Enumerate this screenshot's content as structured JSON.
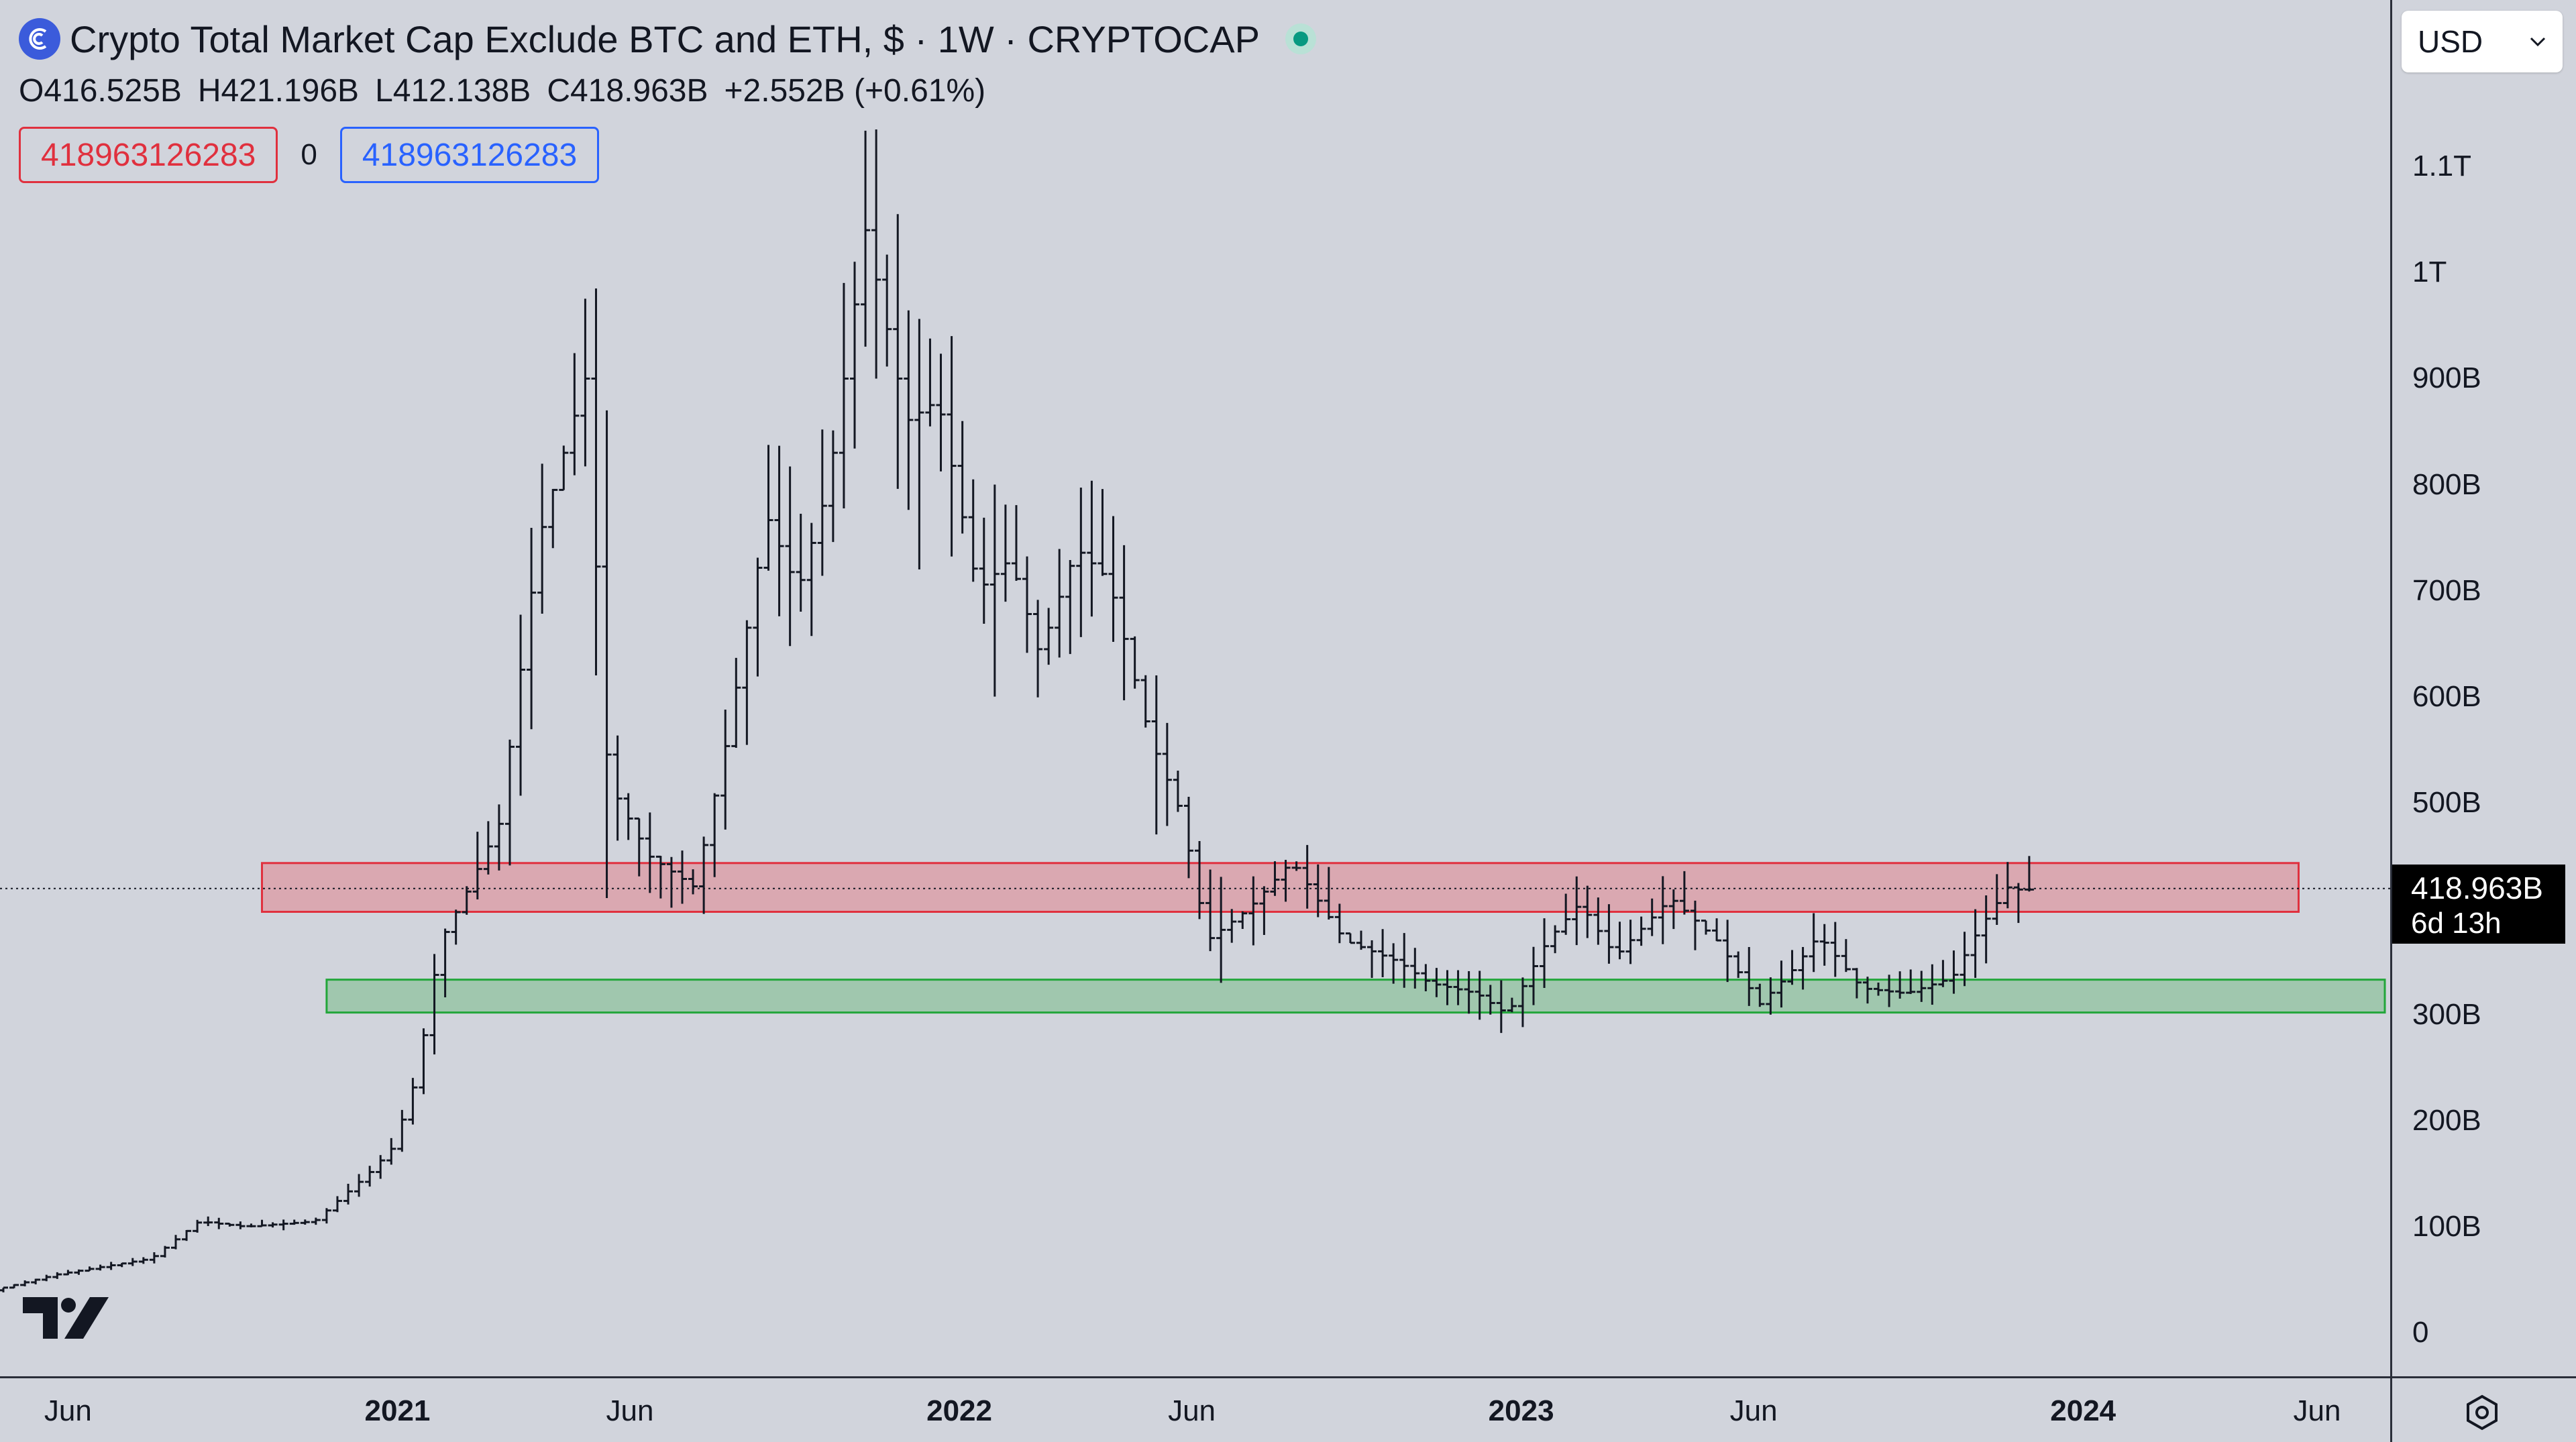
{
  "header": {
    "title": "Crypto Total Market Cap Exclude BTC and ETH, $ · 1W · CRYPTOCAP",
    "ohlc": {
      "open_label": "O",
      "open": "416.525B",
      "high_label": "H",
      "high": "421.196B",
      "low_label": "L",
      "low": "412.138B",
      "close_label": "C",
      "close": "418.963B",
      "change": "+2.552B (+0.61%)"
    },
    "bid_value": "418963126283",
    "spread": "0",
    "ask_value": "418963126283",
    "status": "market-open-dot"
  },
  "currency_select": {
    "value": "USD"
  },
  "last_price": {
    "price": "418.963B",
    "countdown": "6d 13h"
  },
  "colors": {
    "background": "#d1d4dc",
    "bars": "#131722",
    "resistance_zone": "#e0303e",
    "support_zone": "#22a63a",
    "bid": "#e0303e",
    "ask": "#2962ff"
  },
  "icons": {
    "logo": "tradingview-logo",
    "symbol": "cryptocap-icon",
    "settings": "settings-gear-icon"
  },
  "chart_data": {
    "type": "ohlc",
    "interval": "1W",
    "ylim": [
      0,
      1150
    ],
    "y_unit": "B",
    "x_range": [
      "2020-04-20",
      "2024-07-15"
    ],
    "y_ticks": [
      {
        "value": 1100,
        "label": "1.1T"
      },
      {
        "value": 1000,
        "label": "1T"
      },
      {
        "value": 900,
        "label": "900B"
      },
      {
        "value": 800,
        "label": "800B"
      },
      {
        "value": 700,
        "label": "700B"
      },
      {
        "value": 600,
        "label": "600B"
      },
      {
        "value": 500,
        "label": "500B"
      },
      {
        "value": 300,
        "label": "300B"
      },
      {
        "value": 200,
        "label": "200B"
      },
      {
        "value": 100,
        "label": "100B"
      },
      {
        "value": 0,
        "label": "0"
      }
    ],
    "x_ticks": [
      {
        "date": "2020-06-01",
        "label": "Jun",
        "year": false
      },
      {
        "date": "2021-01-01",
        "label": "2021",
        "year": true
      },
      {
        "date": "2021-06-01",
        "label": "Jun",
        "year": false
      },
      {
        "date": "2022-01-01",
        "label": "2022",
        "year": true
      },
      {
        "date": "2022-06-01",
        "label": "Jun",
        "year": false
      },
      {
        "date": "2023-01-01",
        "label": "2023",
        "year": true
      },
      {
        "date": "2023-06-01",
        "label": "Jun",
        "year": false
      },
      {
        "date": "2024-01-01",
        "label": "2024",
        "year": true
      },
      {
        "date": "2024-06-01",
        "label": "Jun",
        "year": false
      }
    ],
    "last_price_line": 418.963,
    "zones": [
      {
        "name": "resistance",
        "from": "2020-10-05",
        "to": "2024-05-20",
        "low": 397,
        "high": 443
      },
      {
        "name": "support",
        "from": "2020-11-16",
        "to": "2024-07-15",
        "low": 302,
        "high": 333
      }
    ],
    "anchors": [
      [
        "2020-04-20",
        40
      ],
      [
        "2020-06-01",
        55
      ],
      [
        "2020-08-01",
        70
      ],
      [
        "2020-09-01",
        105
      ],
      [
        "2020-10-01",
        100
      ],
      [
        "2020-11-15",
        105
      ],
      [
        "2020-12-20",
        150
      ],
      [
        "2021-01-05",
        175
      ],
      [
        "2021-01-20",
        240
      ],
      [
        "2021-02-05",
        370
      ],
      [
        "2021-02-20",
        410
      ],
      [
        "2021-03-15",
        480
      ],
      [
        "2021-04-10",
        750
      ],
      [
        "2021-05-10",
        900
      ],
      [
        "2021-05-25",
        520
      ],
      [
        "2021-06-20",
        450
      ],
      [
        "2021-07-20",
        420
      ],
      [
        "2021-08-10",
        560
      ],
      [
        "2021-09-05",
        770
      ],
      [
        "2021-09-25",
        700
      ],
      [
        "2021-10-15",
        800
      ],
      [
        "2021-11-08",
        1040
      ],
      [
        "2021-12-05",
        860
      ],
      [
        "2021-12-25",
        880
      ],
      [
        "2022-01-20",
        700
      ],
      [
        "2022-02-10",
        730
      ],
      [
        "2022-03-01",
        640
      ],
      [
        "2022-03-25",
        740
      ],
      [
        "2022-04-15",
        710
      ],
      [
        "2022-05-12",
        560
      ],
      [
        "2022-06-01",
        490
      ],
      [
        "2022-06-18",
        370
      ],
      [
        "2022-07-15",
        400
      ],
      [
        "2022-08-12",
        445
      ],
      [
        "2022-09-15",
        370
      ],
      [
        "2022-10-20",
        350
      ],
      [
        "2022-11-09",
        330
      ],
      [
        "2022-12-10",
        320
      ],
      [
        "2022-12-30",
        300
      ],
      [
        "2023-01-25",
        370
      ],
      [
        "2023-02-15",
        405
      ],
      [
        "2023-03-10",
        355
      ],
      [
        "2023-04-15",
        410
      ],
      [
        "2023-05-15",
        370
      ],
      [
        "2023-06-12",
        310
      ],
      [
        "2023-07-05",
        345
      ],
      [
        "2023-07-20",
        375
      ],
      [
        "2023-08-17",
        325
      ],
      [
        "2023-09-15",
        320
      ],
      [
        "2023-10-15",
        335
      ],
      [
        "2023-11-01",
        380
      ],
      [
        "2023-11-20",
        420
      ],
      [
        "2023-11-27",
        418
      ]
    ],
    "spikes": [
      [
        "2021-05-10",
        985,
        620
      ],
      [
        "2021-05-20",
        870,
        410
      ],
      [
        "2021-07-20",
        460,
        395
      ],
      [
        "2021-11-08",
        1135,
        900
      ],
      [
        "2021-12-05",
        930,
        720
      ],
      [
        "2022-01-24",
        800,
        600
      ],
      [
        "2022-05-12",
        620,
        470
      ],
      [
        "2022-06-18",
        430,
        330
      ],
      [
        "2022-08-12",
        460,
        400
      ],
      [
        "2022-12-30",
        310,
        290
      ],
      [
        "2023-06-12",
        325,
        300
      ]
    ]
  }
}
